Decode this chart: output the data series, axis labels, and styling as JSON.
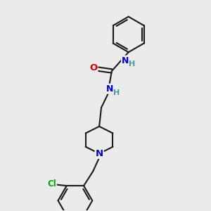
{
  "background_color": "#ebebeb",
  "bond_color": "#1a1a1a",
  "bond_width": 1.5,
  "atom_colors": {
    "N": "#0000cc",
    "O": "#cc0000",
    "Cl": "#00aa00",
    "H": "#4a9a9a",
    "C": "#1a1a1a"
  },
  "font_size_atom": 8.5,
  "figsize": [
    3.0,
    3.0
  ],
  "dpi": 100,
  "xlim": [
    0,
    10
  ],
  "ylim": [
    0,
    10
  ]
}
